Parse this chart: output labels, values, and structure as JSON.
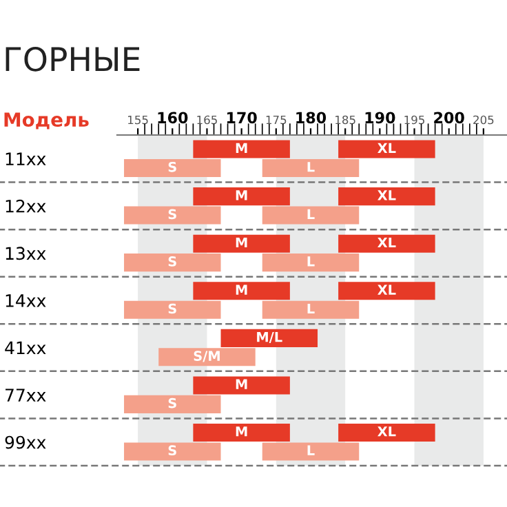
{
  "chart_data": {
    "type": "bar",
    "orientation": "horizontal",
    "title": "ГОРНЫЕ",
    "ylabel": "Модель",
    "categories": [
      "11xx",
      "12xx",
      "13xx",
      "14xx",
      "41xx",
      "77xx",
      "99xx"
    ],
    "series": [
      {
        "name": "M",
        "color": "#e63a27",
        "base": [
          163,
          163,
          163,
          163,
          null,
          163,
          163
        ],
        "values": [
          14,
          14,
          14,
          14,
          null,
          14,
          14
        ]
      },
      {
        "name": "S",
        "color": "#f4a08a",
        "base": [
          153,
          153,
          153,
          153,
          null,
          153,
          153
        ],
        "values": [
          14,
          14,
          14,
          14,
          null,
          14,
          14
        ]
      },
      {
        "name": "XL",
        "color": "#e63a27",
        "base": [
          184,
          184,
          184,
          184,
          null,
          null,
          184
        ],
        "values": [
          14,
          14,
          14,
          14,
          null,
          null,
          14
        ]
      },
      {
        "name": "L",
        "color": "#f4a08a",
        "base": [
          173,
          173,
          173,
          173,
          null,
          null,
          173
        ],
        "values": [
          14,
          14,
          14,
          14,
          null,
          null,
          14
        ]
      },
      {
        "name": "M/L",
        "color": "#e63a27",
        "base": [
          null,
          null,
          null,
          null,
          167,
          null,
          null
        ],
        "values": [
          null,
          null,
          null,
          null,
          14,
          null,
          null
        ]
      },
      {
        "name": "S/M",
        "color": "#f4a08a",
        "base": [
          null,
          null,
          null,
          null,
          158,
          null,
          null
        ],
        "values": [
          null,
          null,
          null,
          null,
          14,
          null,
          null
        ]
      }
    ],
    "xlim": [
      152,
      208.4
    ],
    "xticks": [
      155,
      {
        "value": 156,
        "label": null
      },
      {
        "value": 157,
        "label": null
      },
      {
        "value": 158,
        "label": null
      },
      {
        "value": 159,
        "label": null
      },
      160,
      {
        "value": 161,
        "label": null
      },
      {
        "value": 162,
        "label": null
      },
      {
        "value": 163,
        "label": null
      },
      {
        "value": 164,
        "label": null
      },
      165,
      {
        "value": 166,
        "label": null
      },
      {
        "value": 167,
        "label": null
      },
      {
        "value": 168,
        "label": null
      },
      {
        "value": 169,
        "label": null
      },
      170,
      {
        "value": 171,
        "label": null
      },
      {
        "value": 172,
        "label": null
      },
      {
        "value": 173,
        "label": null
      },
      {
        "value": 174,
        "label": null
      },
      175,
      {
        "value": 176,
        "label": null
      },
      {
        "value": 177,
        "label": null
      },
      {
        "value": 178,
        "label": null
      },
      {
        "value": 179,
        "label": null
      },
      180,
      {
        "value": 181,
        "label": null
      },
      {
        "value": 182,
        "label": null
      },
      {
        "value": 183,
        "label": null
      },
      {
        "value": 184,
        "label": null
      },
      185,
      {
        "value": 186,
        "label": null
      },
      {
        "value": 187,
        "label": null
      },
      {
        "value": 188,
        "label": null
      },
      {
        "value": 189,
        "label": null
      },
      190,
      {
        "value": 191,
        "label": null
      },
      {
        "value": 192,
        "label": null
      },
      {
        "value": 193,
        "label": null
      },
      {
        "value": 194,
        "label": null
      },
      195,
      {
        "value": 196,
        "label": null
      },
      {
        "value": 197,
        "label": null
      },
      {
        "value": 198,
        "label": null
      },
      {
        "value": 199,
        "label": null
      },
      200,
      {
        "value": 201,
        "label": null
      },
      {
        "value": 202,
        "label": null
      },
      {
        "value": 203,
        "label": null
      },
      {
        "value": 204,
        "label": null
      },
      205
    ],
    "bands": [
      {
        "axis": "x",
        "from": 155,
        "to": 165,
        "color": "#e9eaea"
      },
      {
        "axis": "x",
        "from": 175,
        "to": 185,
        "color": "#e9eaea"
      },
      {
        "axis": "x",
        "from": 195,
        "to": 205,
        "color": "#e9eaea"
      }
    ],
    "grid": false
  }
}
